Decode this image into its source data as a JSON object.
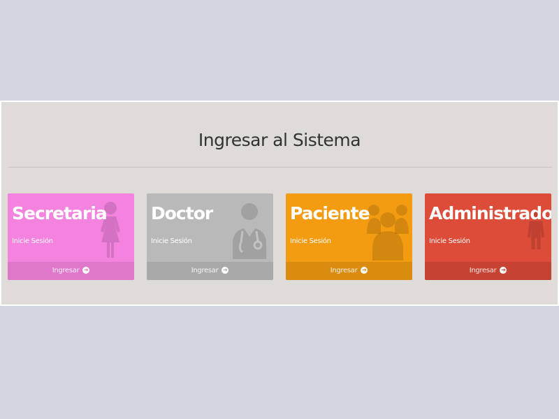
{
  "panel": {
    "title": "Ingresar al Sistema"
  },
  "cards": [
    {
      "title": "Secretaria",
      "subtitle": "Inicie Sesión",
      "footer_label": "Ingresar",
      "icon": "female-icon",
      "color": "#f383df",
      "footer_color": "#df77cb"
    },
    {
      "title": "Doctor",
      "subtitle": "Inicie Sesión",
      "footer_label": "Ingresar",
      "icon": "user-md-icon",
      "color": "#b9b9b9",
      "footer_color": "#a9a9a9"
    },
    {
      "title": "Paciente",
      "subtitle": "Inicie Sesión",
      "footer_label": "Ingresar",
      "icon": "users-icon",
      "color": "#f39c12",
      "footer_color": "#da8c10"
    },
    {
      "title": "Administrador",
      "subtitle": "Inicie Sesión",
      "footer_label": "Ingresar",
      "icon": "male-icon",
      "color": "#dd4b39",
      "footer_color": "#c64333"
    }
  ],
  "icons": {
    "footer_arrow": "arrow-circle-right-icon"
  }
}
